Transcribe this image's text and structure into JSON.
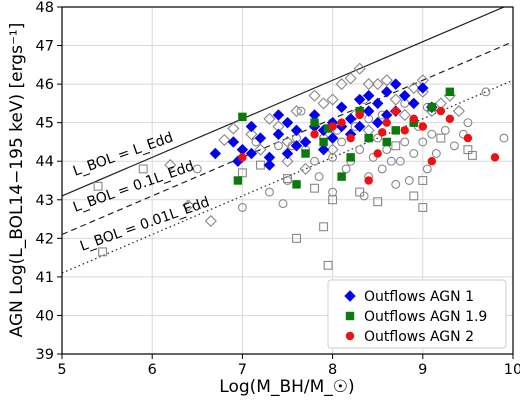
{
  "chart_data": {
    "type": "scatter",
    "xlabel": "Log(M_BH/M_☉)",
    "ylabel": "AGN Log(L_BOL14−195 keV) [ergs⁻¹]",
    "xlim": [
      5,
      10
    ],
    "ylim": [
      39,
      48
    ],
    "xticks": [
      "5",
      "6",
      "7",
      "8",
      "9",
      "10"
    ],
    "yticks": [
      "39",
      "40",
      "41",
      "42",
      "43",
      "44",
      "45",
      "46",
      "47",
      "48"
    ],
    "grid": true,
    "legend_position": "lower-right",
    "annotations": {
      "edd": "L_BOL = L_Edd",
      "edd01": "L_BOL = 0.1L_Edd",
      "edd001": "L_BOL = 0.01L_Edd"
    },
    "reference_lines": [
      {
        "label": "L_BOL = L_Edd",
        "style": "solid",
        "x": [
          5,
          10
        ],
        "y": [
          43.1,
          48.1
        ]
      },
      {
        "label": "L_BOL = 0.1L_Edd",
        "style": "dashed",
        "x": [
          5,
          10
        ],
        "y": [
          42.1,
          47.1
        ]
      },
      {
        "label": "L_BOL = 0.01L_Edd",
        "style": "dotted",
        "x": [
          5,
          10
        ],
        "y": [
          41.1,
          46.1
        ]
      }
    ],
    "series": [
      {
        "name": "Outflows AGN 1",
        "marker": "diamond",
        "color": "#0000ee",
        "points": [
          [
            6.7,
            44.2
          ],
          [
            6.9,
            44.5
          ],
          [
            7.1,
            44.9
          ],
          [
            7.0,
            44.3
          ],
          [
            7.2,
            44.6
          ],
          [
            7.3,
            44.1
          ],
          [
            7.4,
            44.7
          ],
          [
            7.5,
            45.0
          ],
          [
            7.6,
            44.8
          ],
          [
            7.5,
            44.2
          ],
          [
            7.7,
            44.5
          ],
          [
            7.8,
            45.2
          ],
          [
            7.9,
            44.8
          ],
          [
            8.0,
            45.0
          ],
          [
            8.0,
            44.6
          ],
          [
            8.1,
            45.4
          ],
          [
            8.2,
            45.1
          ],
          [
            8.3,
            45.6
          ],
          [
            8.3,
            44.9
          ],
          [
            8.4,
            45.7
          ],
          [
            8.5,
            45.5
          ],
          [
            8.5,
            45.0
          ],
          [
            8.6,
            45.8
          ],
          [
            8.7,
            46.0
          ],
          [
            8.7,
            45.3
          ],
          [
            8.8,
            45.7
          ],
          [
            8.9,
            45.5
          ],
          [
            9.0,
            45.9
          ],
          [
            9.1,
            45.4
          ],
          [
            7.3,
            43.9
          ],
          [
            7.6,
            44.4
          ],
          [
            7.9,
            44.3
          ],
          [
            8.2,
            44.7
          ],
          [
            7.4,
            45.2
          ],
          [
            8.4,
            45.3
          ],
          [
            8.6,
            45.2
          ],
          [
            8.1,
            44.9
          ],
          [
            7.8,
            44.9
          ],
          [
            7.1,
            44.2
          ],
          [
            6.95,
            44.0
          ]
        ]
      },
      {
        "name": "Outflows AGN 1.9",
        "marker": "square",
        "color": "#0a7a0a",
        "points": [
          [
            6.95,
            43.5
          ],
          [
            7.0,
            45.15
          ],
          [
            7.6,
            43.4
          ],
          [
            7.7,
            44.2
          ],
          [
            7.8,
            45.0
          ],
          [
            7.9,
            44.5
          ],
          [
            8.1,
            43.6
          ],
          [
            8.2,
            44.1
          ],
          [
            8.3,
            45.3
          ],
          [
            8.4,
            44.6
          ],
          [
            8.6,
            44.5
          ],
          [
            8.7,
            44.8
          ],
          [
            8.9,
            45.0
          ],
          [
            9.1,
            45.4
          ],
          [
            9.3,
            45.8
          ],
          [
            7.95,
            44.85
          ]
        ]
      },
      {
        "name": "Outflows AGN 2",
        "marker": "circle",
        "color": "#ee1111",
        "points": [
          [
            7.0,
            44.1
          ],
          [
            7.8,
            44.7
          ],
          [
            8.0,
            44.9
          ],
          [
            8.1,
            45.0
          ],
          [
            8.2,
            44.6
          ],
          [
            8.3,
            45.2
          ],
          [
            8.4,
            43.5
          ],
          [
            8.5,
            44.2
          ],
          [
            8.6,
            45.0
          ],
          [
            8.7,
            45.3
          ],
          [
            8.8,
            44.8
          ],
          [
            8.9,
            45.1
          ],
          [
            9.0,
            44.9
          ],
          [
            9.1,
            44.0
          ],
          [
            9.2,
            45.3
          ],
          [
            9.3,
            45.1
          ],
          [
            9.5,
            44.6
          ],
          [
            9.8,
            44.1
          ],
          [
            8.55,
            44.75
          ]
        ]
      },
      {
        "name": "",
        "marker": "open-diamond",
        "color": "#888888",
        "points": [
          [
            6.65,
            42.45
          ],
          [
            6.2,
            43.9
          ],
          [
            6.9,
            44.85
          ],
          [
            7.2,
            44.3
          ],
          [
            7.4,
            44.9
          ],
          [
            7.6,
            45.3
          ],
          [
            7.8,
            45.7
          ],
          [
            8.0,
            45.6
          ],
          [
            8.2,
            46.15
          ],
          [
            8.3,
            46.4
          ],
          [
            8.5,
            46.0
          ],
          [
            8.7,
            45.6
          ],
          [
            8.9,
            45.9
          ],
          [
            9.0,
            46.1
          ],
          [
            9.1,
            45.3
          ],
          [
            7.5,
            44.0
          ],
          [
            7.7,
            43.8
          ],
          [
            8.0,
            44.3
          ],
          [
            8.4,
            44.8
          ],
          [
            9.2,
            45.5
          ],
          [
            7.3,
            45.1
          ],
          [
            8.6,
            46.1
          ],
          [
            6.8,
            44.55
          ],
          [
            7.9,
            45.5
          ],
          [
            8.1,
            46.0
          ],
          [
            8.4,
            46.0
          ],
          [
            9.3,
            45.7
          ],
          [
            9.4,
            45.3
          ],
          [
            7.1,
            44.7
          ],
          [
            8.8,
            45.2
          ],
          [
            6.4,
            42.85
          ],
          [
            7.5,
            44.5
          ],
          [
            8.25,
            45.2
          ],
          [
            9.0,
            45.8
          ]
        ]
      },
      {
        "name": "",
        "marker": "open-square",
        "color": "#888888",
        "points": [
          [
            5.4,
            43.35
          ],
          [
            5.45,
            41.65
          ],
          [
            5.9,
            43.8
          ],
          [
            7.0,
            43.7
          ],
          [
            7.5,
            43.55
          ],
          [
            7.6,
            42.0
          ],
          [
            7.8,
            43.3
          ],
          [
            7.9,
            42.3
          ],
          [
            7.95,
            41.3
          ],
          [
            8.0,
            43.0
          ],
          [
            8.3,
            43.2
          ],
          [
            8.5,
            42.95
          ],
          [
            8.9,
            43.1
          ],
          [
            9.0,
            42.8
          ],
          [
            9.0,
            43.5
          ],
          [
            9.5,
            44.3
          ],
          [
            9.55,
            44.15
          ],
          [
            8.7,
            44.4
          ],
          [
            9.2,
            44.6
          ],
          [
            7.2,
            43.9
          ]
        ]
      },
      {
        "name": "",
        "marker": "open-circle",
        "color": "#888888",
        "points": [
          [
            6.5,
            43.8
          ],
          [
            7.0,
            42.8
          ],
          [
            7.3,
            43.2
          ],
          [
            7.4,
            44.4
          ],
          [
            7.5,
            43.5
          ],
          [
            7.6,
            44.6
          ],
          [
            7.7,
            44.3
          ],
          [
            7.8,
            44.0
          ],
          [
            7.9,
            44.6
          ],
          [
            8.0,
            44.1
          ],
          [
            8.0,
            43.2
          ],
          [
            8.1,
            44.5
          ],
          [
            8.15,
            43.8
          ],
          [
            8.2,
            44.0
          ],
          [
            8.3,
            44.3
          ],
          [
            8.35,
            43.1
          ],
          [
            8.4,
            43.6
          ],
          [
            8.45,
            44.1
          ],
          [
            8.5,
            44.6
          ],
          [
            8.55,
            43.8
          ],
          [
            8.6,
            44.3
          ],
          [
            8.7,
            43.4
          ],
          [
            8.75,
            44.0
          ],
          [
            8.8,
            44.5
          ],
          [
            8.85,
            43.5
          ],
          [
            8.9,
            44.2
          ],
          [
            9.0,
            44.5
          ],
          [
            9.05,
            43.8
          ],
          [
            9.1,
            44.7
          ],
          [
            9.15,
            44.2
          ],
          [
            9.25,
            44.8
          ],
          [
            9.35,
            44.4
          ],
          [
            9.5,
            45.0
          ],
          [
            9.7,
            45.8
          ],
          [
            9.9,
            44.6
          ],
          [
            8.65,
            44.0
          ],
          [
            8.25,
            44.9
          ],
          [
            7.85,
            43.6
          ],
          [
            7.65,
            45.3
          ],
          [
            8.05,
            44.8
          ],
          [
            8.55,
            45.2
          ],
          [
            8.95,
            44.9
          ],
          [
            9.45,
            44.7
          ],
          [
            7.55,
            44.4
          ],
          [
            8.8,
            45.5
          ],
          [
            9.05,
            45.4
          ],
          [
            7.15,
            44.5
          ],
          [
            8.35,
            45.6
          ],
          [
            7.45,
            42.9
          ],
          [
            8.4,
            45.1
          ]
        ]
      }
    ]
  }
}
